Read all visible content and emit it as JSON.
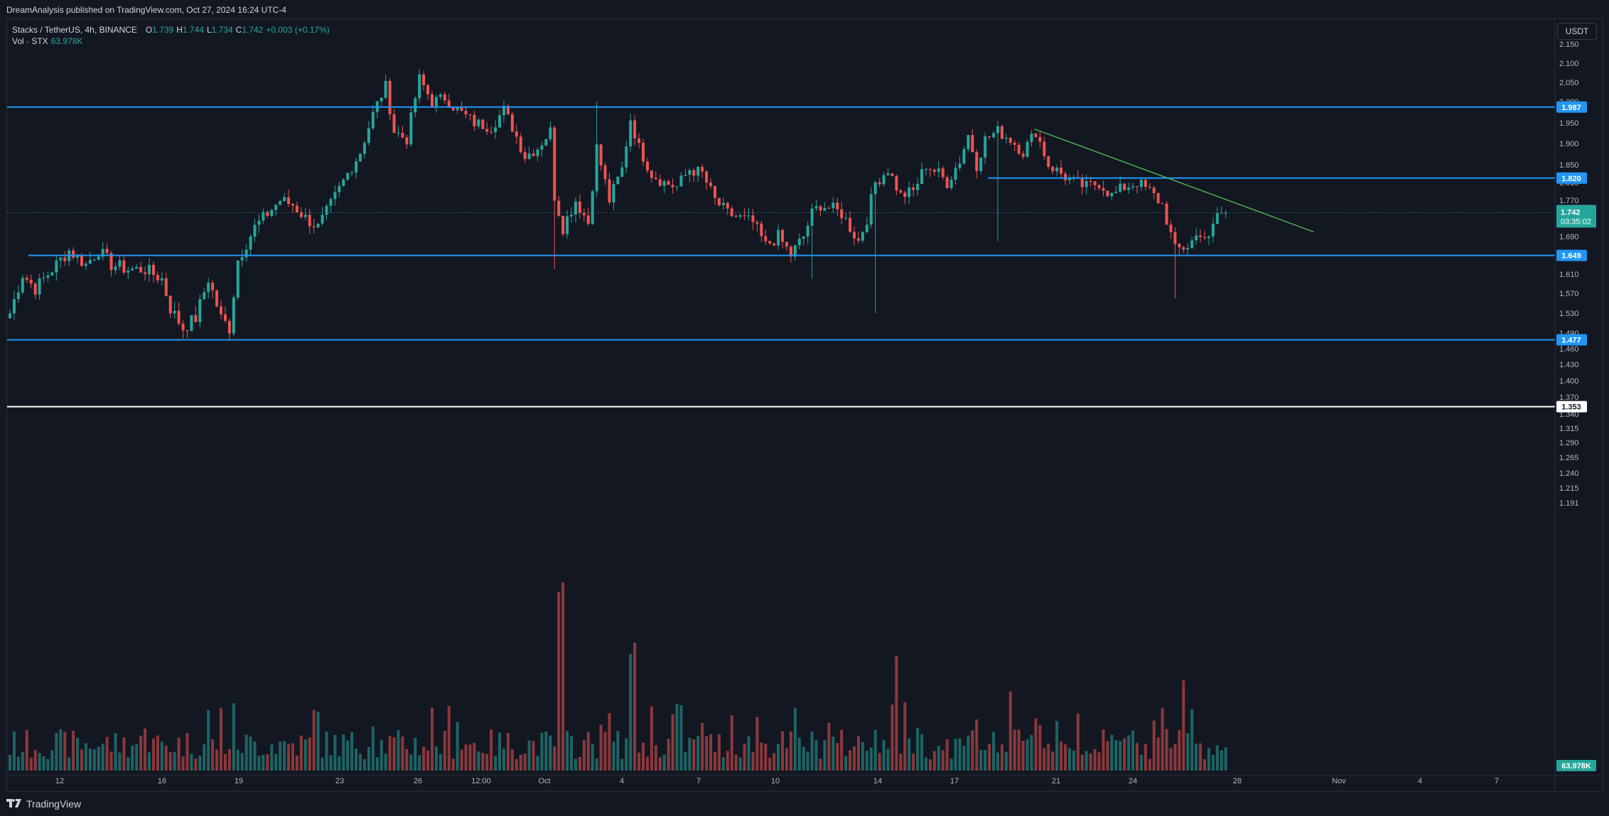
{
  "header": {
    "published": "DreamAnalysis published on TradingView.com, Oct 27, 2024 16:24 UTC-4"
  },
  "legend": {
    "symbol": "Stacks / TetherUS, 4h, BINANCE",
    "open_label": "O",
    "open": "1.739",
    "high_label": "H",
    "high": "1.744",
    "low_label": "L",
    "low": "1.734",
    "close_label": "C",
    "close": "1.742",
    "change": "+0.003 (+0.17%)",
    "vol_label": "Vol · STX",
    "vol_value": "63.978K"
  },
  "toolbar": {
    "currency": "USDT"
  },
  "footer": {
    "brand": "TradingView"
  },
  "colors": {
    "background": "#131722",
    "up": "#26a69a",
    "down": "#ef5350",
    "level_line": "#2196f3",
    "trend_line": "#4caf50",
    "white_line": "#ffffff",
    "grid_text": "#b2b5be"
  },
  "chart_data": {
    "type": "candlestick",
    "symbol": "STX/USDT",
    "timeframe": "4h",
    "ylim": [
      1.18,
      2.17
    ],
    "y_ticks": [
      "2.150",
      "2.100",
      "2.050",
      "2.000",
      "1.950",
      "1.900",
      "1.850",
      "1.810",
      "1.770",
      "1.730",
      "1.690",
      "1.650",
      "1.610",
      "1.570",
      "1.530",
      "1.490",
      "1.460",
      "1.430",
      "1.400",
      "1.370",
      "1.340",
      "1.315",
      "1.290",
      "1.265",
      "1.240",
      "1.215",
      "1.191"
    ],
    "x_ticks": [
      "12",
      "16",
      "19",
      "23",
      "26",
      "12:00",
      "Oct",
      "4",
      "7",
      "10",
      "14",
      "17",
      "21",
      "24",
      "28",
      "Nov",
      "4",
      "7"
    ],
    "horizontal_levels": [
      {
        "value": 1.987,
        "label": "1.987",
        "color": "#2196f3"
      },
      {
        "value": 1.82,
        "label": "1.820",
        "color": "#2196f3"
      },
      {
        "value": 1.649,
        "label": "1.649",
        "color": "#2196f3"
      },
      {
        "value": 1.477,
        "label": "1.477",
        "color": "#2196f3"
      },
      {
        "value": 1.353,
        "label": "1.353",
        "color": "#ffffff"
      }
    ],
    "trend_line": {
      "from": {
        "bar": 243,
        "price": 1.935
      },
      "to": {
        "bar": 294,
        "price": 1.694
      },
      "color": "#4caf50"
    },
    "last_price": {
      "value": "1.742",
      "countdown": "03:35:02"
    },
    "volume_last": "63.978K",
    "anchors": [
      [
        0,
        1.53
      ],
      [
        3,
        1.61
      ],
      [
        6,
        1.58
      ],
      [
        10,
        1.62
      ],
      [
        14,
        1.66
      ],
      [
        18,
        1.63
      ],
      [
        21,
        1.66
      ],
      [
        24,
        1.63
      ],
      [
        28,
        1.62
      ],
      [
        32,
        1.62
      ],
      [
        36,
        1.6
      ],
      [
        38,
        1.54
      ],
      [
        41,
        1.5
      ],
      [
        44,
        1.52
      ],
      [
        47,
        1.6
      ],
      [
        50,
        1.52
      ],
      [
        52,
        1.5
      ],
      [
        54,
        1.64
      ],
      [
        58,
        1.71
      ],
      [
        61,
        1.74
      ],
      [
        64,
        1.77
      ],
      [
        67,
        1.76
      ],
      [
        70,
        1.73
      ],
      [
        73,
        1.71
      ],
      [
        76,
        1.76
      ],
      [
        80,
        1.83
      ],
      [
        83,
        1.88
      ],
      [
        86,
        1.97
      ],
      [
        89,
        2.04
      ],
      [
        91,
        1.93
      ],
      [
        94,
        1.91
      ],
      [
        97,
        2.06
      ],
      [
        100,
        2.0
      ],
      [
        103,
        2.01
      ],
      [
        106,
        1.98
      ],
      [
        110,
        1.95
      ],
      [
        114,
        1.94
      ],
      [
        117,
        1.98
      ],
      [
        119,
        1.94
      ],
      [
        122,
        1.87
      ],
      [
        125,
        1.89
      ],
      [
        128,
        1.93
      ],
      [
        129,
        1.78
      ],
      [
        131,
        1.71
      ],
      [
        134,
        1.77
      ],
      [
        137,
        1.72
      ],
      [
        139,
        1.89
      ],
      [
        142,
        1.77
      ],
      [
        145,
        1.84
      ],
      [
        147,
        1.96
      ],
      [
        149,
        1.89
      ],
      [
        152,
        1.83
      ],
      [
        155,
        1.81
      ],
      [
        158,
        1.8
      ],
      [
        161,
        1.84
      ],
      [
        164,
        1.83
      ],
      [
        167,
        1.77
      ],
      [
        170,
        1.74
      ],
      [
        173,
        1.73
      ],
      [
        176,
        1.72
      ],
      [
        179,
        1.67
      ],
      [
        182,
        1.69
      ],
      [
        185,
        1.65
      ],
      [
        188,
        1.69
      ],
      [
        190,
        1.74
      ],
      [
        192,
        1.76
      ],
      [
        195,
        1.75
      ],
      [
        197,
        1.74
      ],
      [
        199,
        1.71
      ],
      [
        201,
        1.68
      ],
      [
        203,
        1.73
      ],
      [
        205,
        1.81
      ],
      [
        208,
        1.84
      ],
      [
        211,
        1.78
      ],
      [
        214,
        1.79
      ],
      [
        217,
        1.85
      ],
      [
        220,
        1.83
      ],
      [
        222,
        1.81
      ],
      [
        225,
        1.86
      ],
      [
        227,
        1.92
      ],
      [
        229,
        1.85
      ],
      [
        231,
        1.91
      ],
      [
        234,
        1.93
      ],
      [
        237,
        1.91
      ],
      [
        240,
        1.88
      ],
      [
        243,
        1.93
      ],
      [
        246,
        1.85
      ],
      [
        249,
        1.83
      ],
      [
        252,
        1.81
      ],
      [
        255,
        1.8
      ],
      [
        258,
        1.81
      ],
      [
        261,
        1.78
      ],
      [
        264,
        1.8
      ],
      [
        267,
        1.81
      ],
      [
        270,
        1.79
      ],
      [
        273,
        1.76
      ],
      [
        276,
        1.66
      ],
      [
        279,
        1.67
      ],
      [
        282,
        1.7
      ],
      [
        284,
        1.68
      ],
      [
        286,
        1.74
      ],
      [
        288,
        1.742
      ]
    ]
  }
}
